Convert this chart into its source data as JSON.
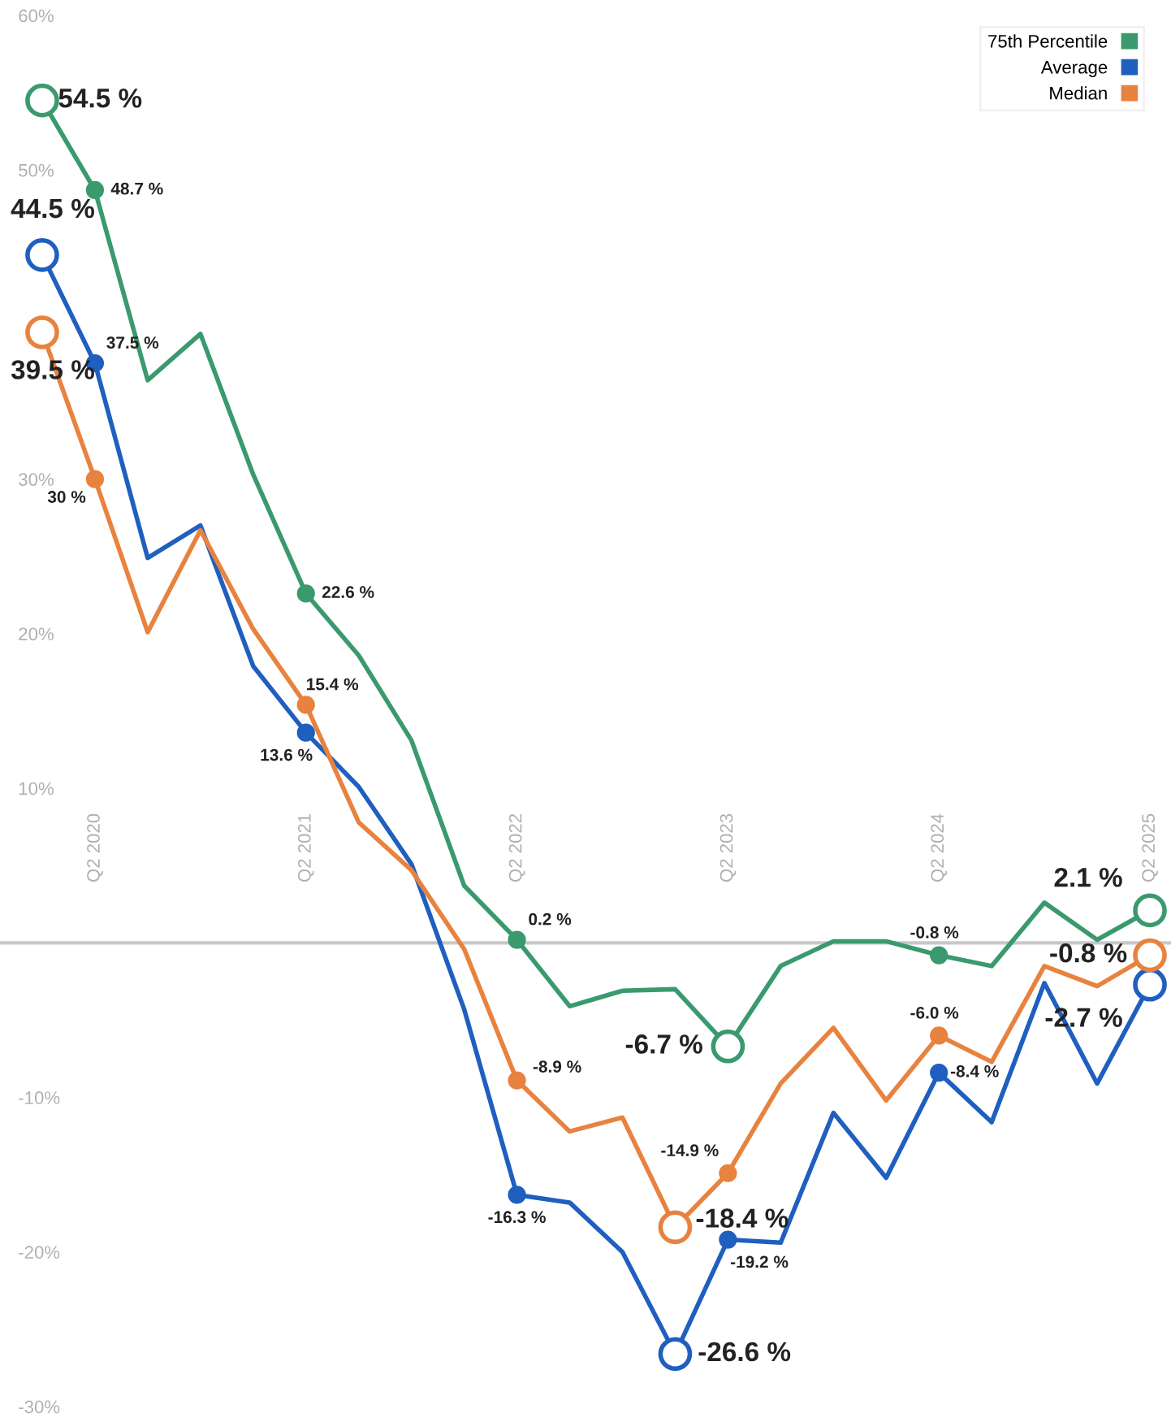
{
  "chart_data": {
    "type": "line",
    "categories": [
      null,
      "Q2 2020",
      null,
      null,
      null,
      "Q2 2021",
      null,
      null,
      null,
      "Q2 2022",
      null,
      null,
      null,
      "Q2 2023",
      null,
      null,
      null,
      "Q2 2024",
      null,
      null,
      null,
      "Q2 2025"
    ],
    "series": [
      {
        "name": "75th Percentile",
        "color": "#3a9a6e",
        "values": [
          54.5,
          48.7,
          36.4,
          39.4,
          30.3,
          22.6,
          18.6,
          13.1,
          3.7,
          0.2,
          -4.1,
          -3.1,
          -3.0,
          -6.7,
          -1.5,
          0.1,
          0.1,
          -0.8,
          -1.5,
          2.6,
          0.2,
          2.1
        ],
        "value_labels": [
          "54.5 %",
          "48.7 %",
          null,
          null,
          null,
          "22.6 %",
          null,
          null,
          null,
          "0.2 %",
          null,
          null,
          null,
          "-6.7 %",
          null,
          null,
          null,
          "-0.8 %",
          null,
          null,
          null,
          "2.1 %"
        ]
      },
      {
        "name": "Average",
        "color": "#1f5fbf",
        "values": [
          44.5,
          37.5,
          24.9,
          27.0,
          17.9,
          13.6,
          10.1,
          5.1,
          -4.3,
          -16.3,
          -16.8,
          -20.0,
          -26.6,
          -19.2,
          -19.4,
          -11.0,
          -15.2,
          -8.4,
          -11.6,
          -2.6,
          -9.1,
          -2.7
        ],
        "value_labels": [
          "44.5 %",
          "37.5 %",
          null,
          null,
          null,
          "13.6 %",
          null,
          null,
          null,
          "-16.3 %",
          null,
          null,
          "-26.6 %",
          "-19.2 %",
          null,
          null,
          null,
          "-8.4 %",
          null,
          null,
          null,
          "-2.7 %"
        ]
      },
      {
        "name": "Median",
        "color": "#e8823f",
        "values": [
          39.5,
          30,
          20.1,
          26.7,
          20.3,
          15.4,
          7.8,
          4.7,
          -0.4,
          -8.9,
          -12.2,
          -11.3,
          -18.4,
          -14.9,
          -9.1,
          -5.5,
          -10.2,
          -6.0,
          -7.7,
          -1.5,
          -2.8,
          -0.8
        ],
        "value_labels": [
          "39.5 %",
          "30 %",
          null,
          null,
          null,
          "15.4 %",
          null,
          null,
          null,
          "-8.9 %",
          null,
          null,
          "-18.4 %",
          "-14.9 %",
          null,
          null,
          null,
          "-6.0 %",
          null,
          null,
          null,
          "-0.8 %"
        ]
      }
    ],
    "ylim": [
      -31,
      61
    ],
    "yticks": [
      {
        "value": 60,
        "label": "60%"
      },
      {
        "value": 50,
        "label": "50%"
      },
      {
        "value": 30,
        "label": "30%"
      },
      {
        "value": 20,
        "label": "20%"
      },
      {
        "value": 10,
        "label": "10%"
      },
      {
        "value": -10,
        "label": "-10%"
      },
      {
        "value": -20,
        "label": "-20%"
      },
      {
        "value": -30,
        "label": "-30%"
      }
    ],
    "ref_lines": [
      {
        "axis": "y",
        "value": 0,
        "color": "#c8c8c8"
      }
    ],
    "line_style": "solid",
    "grid": false,
    "legend": "top right"
  }
}
